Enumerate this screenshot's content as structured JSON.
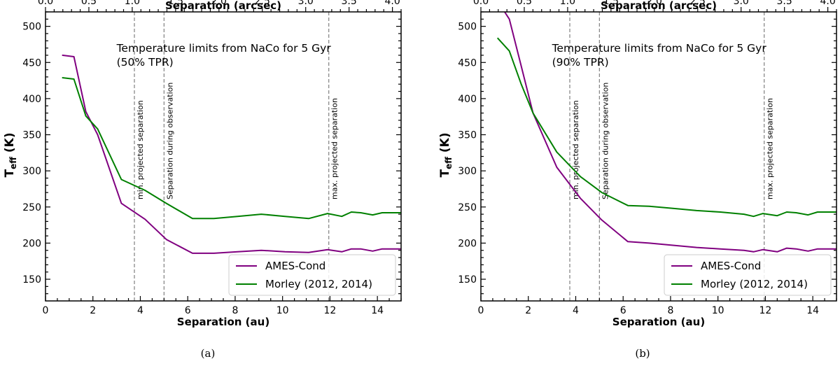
{
  "figure": {
    "panel_letters": [
      "(a)",
      "(b)"
    ]
  },
  "chart_data": [
    {
      "type": "line",
      "panel_label": "(a)",
      "annotation": [
        "Temperature limits from NaCo for 5 Gyr",
        "(50% TPR)"
      ],
      "xlabel": "Separation (au)",
      "x2label": "Separation (arcsec)",
      "ylabel_main": "T",
      "ylabel_sub": "eff",
      "ylabel_unit": " (K)",
      "xlim": [
        0,
        15
      ],
      "ylim": [
        120,
        520
      ],
      "x2lim": [
        0,
        4.1
      ],
      "xticks": [
        0,
        2,
        4,
        6,
        8,
        10,
        12,
        14
      ],
      "yticks": [
        150,
        200,
        250,
        300,
        350,
        400,
        450,
        500
      ],
      "x2ticks": [
        0.0,
        0.5,
        1.0,
        1.5,
        2.0,
        2.5,
        3.0,
        3.5,
        4.0
      ],
      "x2tick_labels": [
        "0.0",
        "0.5",
        "1.0",
        "1.5",
        "2.0",
        "2.5",
        "3.0",
        "3.5",
        "4.0"
      ],
      "vlines": [
        {
          "x": 3.75,
          "label": "min. projected separation"
        },
        {
          "x": 5.0,
          "label": "Separation during observation"
        },
        {
          "x": 11.95,
          "label": "max. projected separation"
        }
      ],
      "series": [
        {
          "name": "AMES-Cond",
          "color": "#800080",
          "x": [
            0.7,
            1.2,
            1.7,
            2.2,
            3.2,
            4.2,
            5.1,
            6.2,
            7.1,
            8.1,
            9.1,
            10.1,
            11.1,
            11.9,
            12.5,
            12.9,
            13.3,
            13.8,
            14.2,
            15.0
          ],
          "y": [
            460,
            458,
            382,
            350,
            255,
            233,
            205,
            186,
            186,
            188,
            190,
            188,
            187,
            191,
            188,
            192,
            192,
            189,
            192,
            192
          ]
        },
        {
          "name": "Morley (2012, 2014)",
          "color": "#008000",
          "x": [
            0.7,
            1.2,
            1.7,
            2.2,
            3.2,
            4.2,
            5.1,
            6.2,
            7.1,
            8.1,
            9.1,
            10.1,
            11.1,
            11.9,
            12.5,
            12.9,
            13.3,
            13.8,
            14.2,
            15.0
          ],
          "y": [
            429,
            427,
            376,
            358,
            288,
            273,
            255,
            234,
            234,
            237,
            240,
            237,
            234,
            241,
            237,
            243,
            242,
            239,
            242,
            242
          ]
        }
      ],
      "legend": "lower right"
    },
    {
      "type": "line",
      "panel_label": "(b)",
      "annotation": [
        "Temperature limits from NaCo for 5 Gyr",
        "(90% TPR)"
      ],
      "xlabel": "Separation (au)",
      "x2label": "Separation (arcsec)",
      "ylabel_main": "T",
      "ylabel_sub": "eff",
      "ylabel_unit": " (K)",
      "xlim": [
        0,
        15
      ],
      "ylim": [
        120,
        520
      ],
      "x2lim": [
        0,
        4.1
      ],
      "xticks": [
        0,
        2,
        4,
        6,
        8,
        10,
        12,
        14
      ],
      "yticks": [
        150,
        200,
        250,
        300,
        350,
        400,
        450,
        500
      ],
      "x2ticks": [
        0.0,
        0.5,
        1.0,
        1.5,
        2.0,
        2.5,
        3.0,
        3.5,
        4.0
      ],
      "x2tick_labels": [
        "0.0",
        "0.5",
        "1.0",
        "1.5",
        "2.0",
        "2.5",
        "3.0",
        "3.5",
        "4.0"
      ],
      "vlines": [
        {
          "x": 3.75,
          "label": "min. projected separation"
        },
        {
          "x": 5.0,
          "label": "Separation during observation"
        },
        {
          "x": 11.95,
          "label": "max. projected separation"
        }
      ],
      "series": [
        {
          "name": "AMES-Cond",
          "color": "#800080",
          "x": [
            1.0,
            1.2,
            1.7,
            2.2,
            3.2,
            4.2,
            5.1,
            6.2,
            7.1,
            8.1,
            9.1,
            10.1,
            11.1,
            11.5,
            11.9,
            12.5,
            12.9,
            13.3,
            13.8,
            14.2,
            15.0
          ],
          "y": [
            520,
            510,
            445,
            380,
            305,
            262,
            232,
            202,
            200,
            197,
            194,
            192,
            190,
            188,
            191,
            188,
            193,
            192,
            189,
            192,
            192
          ]
        },
        {
          "name": "Morley (2012, 2014)",
          "color": "#008000",
          "x": [
            0.7,
            1.2,
            1.7,
            2.2,
            3.2,
            4.2,
            5.1,
            6.2,
            7.1,
            8.1,
            9.1,
            10.1,
            11.1,
            11.5,
            11.9,
            12.5,
            12.9,
            13.3,
            13.8,
            14.2,
            15.0
          ],
          "y": [
            484,
            466,
            420,
            380,
            326,
            292,
            270,
            252,
            251,
            248,
            245,
            243,
            240,
            237,
            241,
            238,
            243,
            242,
            239,
            243,
            243
          ]
        }
      ],
      "legend": "lower right"
    }
  ]
}
